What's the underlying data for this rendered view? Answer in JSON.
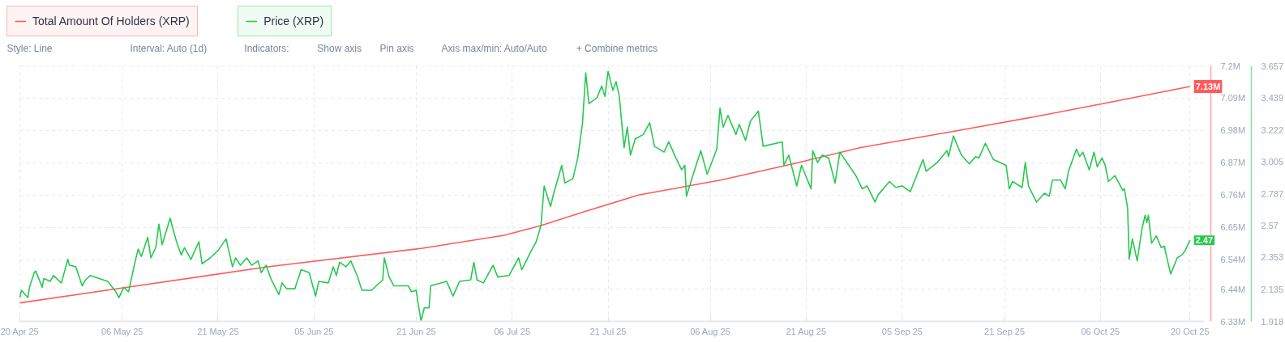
{
  "chart_data": {
    "type": "line",
    "series": [
      {
        "name": "Total Amount Of Holders (XRP)",
        "color": "#ff5a5a",
        "x": [
          "2025-04-20",
          "2025-05-05T12:00",
          "2025-05-28T12:00",
          "2025-06-22",
          "2025-07-04T18:00",
          "2025-07-10T12:00",
          "2025-07-17T12:00",
          "2025-07-25T18:00",
          "2025-08-07T18:00",
          "2025-08-19",
          "2025-08-29T12:00",
          "2025-09-13",
          "2025-09-25T12:00",
          "2025-10-06T12:00",
          "2025-10-20"
        ],
        "values": [
          6.393,
          6.442,
          6.515,
          6.579,
          6.623,
          6.656,
          6.705,
          6.76,
          6.812,
          6.867,
          6.922,
          6.977,
          7.026,
          7.072,
          7.13
        ],
        "value_labels": [
          null,
          null,
          null,
          null,
          null,
          null,
          null,
          null,
          null,
          null,
          null,
          null,
          null,
          null,
          "7.13M"
        ]
      },
      {
        "name": "Price (XRP)",
        "color": "#28c850",
        "axis": "y2",
        "x": [
          "2025-04-20",
          "2025-04-20T06:00",
          "2025-04-21T06:00",
          "2025-04-21T12:00",
          "2025-04-22T06:00",
          "2025-04-22T12:00",
          "2025-04-23T12:00",
          "2025-04-23T18:00",
          "2025-04-24T18:00",
          "2025-04-25T06:00",
          "2025-04-26T12:00",
          "2025-04-27T12:00",
          "2025-04-27T18:00",
          "2025-04-28T18:00",
          "2025-04-29T18:00",
          "2025-04-30T06:00",
          "2025-05-01",
          "2025-05-03T18:00",
          "2025-05-05",
          "2025-05-05T12:00",
          "2025-05-06T06:00",
          "2025-05-07",
          "2025-05-08",
          "2025-05-08T12:00",
          "2025-05-09",
          "2025-05-10",
          "2025-05-10T12:00",
          "2025-05-11T06:00",
          "2025-05-11T18:00",
          "2025-05-12T06:00",
          "2025-05-13T12:00",
          "2025-05-14T12:00",
          "2025-05-15T06:00",
          "2025-05-15T18:00",
          "2025-05-16T18:00",
          "2025-05-18",
          "2025-05-18T12:00",
          "2025-05-19T18:00",
          "2025-05-21",
          "2025-05-22T06:00",
          "2025-05-23T06:00",
          "2025-05-23T18:00",
          "2025-05-24T12:00",
          "2025-05-25T12:00",
          "2025-05-26T06:00",
          "2025-05-27T06:00",
          "2025-05-27T18:00",
          "2025-05-28T12:00",
          "2025-05-29T06:00",
          "2025-05-30T12:00",
          "2025-05-31",
          "2025-05-31T18:00",
          "2025-06-02",
          "2025-06-03",
          "2025-06-04T06:00",
          "2025-06-05T06:00",
          "2025-06-05T18:00",
          "2025-06-07T06:00",
          "2025-06-08",
          "2025-06-08T12:00",
          "2025-06-09",
          "2025-06-10",
          "2025-06-10T18:00",
          "2025-06-11T18:00",
          "2025-06-12T12:00",
          "2025-06-14",
          "2025-06-15T18:00",
          "2025-06-16",
          "2025-06-16T18:00",
          "2025-06-17T12:00",
          "2025-06-19T18:00",
          "2025-06-20T06:00",
          "2025-06-21",
          "2025-06-21T06:00",
          "2025-06-21T18:00",
          "2025-06-22T06:00",
          "2025-06-23",
          "2025-06-23T06:00",
          "2025-06-25T18:00",
          "2025-06-26T18:00",
          "2025-06-27T18:00",
          "2025-06-29T12:00",
          "2025-06-30",
          "2025-06-30T12:00",
          "2025-07-01T12:00",
          "2025-07-03",
          "2025-07-03T18:00",
          "2025-07-05T12:00",
          "2025-07-07",
          "2025-07-07T12:00",
          "2025-07-09",
          "2025-07-09T18:00",
          "2025-07-10T12:00",
          "2025-07-11",
          "2025-07-12",
          "2025-07-12T12:00",
          "2025-07-13T18:00",
          "2025-07-14T06:00",
          "2025-07-15T12:00",
          "2025-07-16T06:00",
          "2025-07-17",
          "2025-07-17T12:00",
          "2025-07-18",
          "2025-07-19T06:00",
          "2025-07-20",
          "2025-07-20T12:00",
          "2025-07-21",
          "2025-07-21T18:00",
          "2025-07-22T06:00",
          "2025-07-22T18:00",
          "2025-07-23T12:00",
          "2025-07-24",
          "2025-07-24T12:00",
          "2025-07-25T06:00",
          "2025-07-26T12:00",
          "2025-07-27T12:00",
          "2025-07-28T06:00",
          "2025-07-29T18:00",
          "2025-07-30T12:00",
          "2025-07-31T12:00",
          "2025-08-01T12:00",
          "2025-08-02",
          "2025-08-02T06:00",
          "2025-08-03T06:00",
          "2025-08-04T12:00",
          "2025-08-05T12:00",
          "2025-08-07",
          "2025-08-07T12:00",
          "2025-08-08",
          "2025-08-08T18:00",
          "2025-08-10",
          "2025-08-10T12:00",
          "2025-08-11T12:00",
          "2025-08-12T06:00",
          "2025-08-13T12:00",
          "2025-08-14T06:00",
          "2025-08-17T06:00",
          "2025-08-17T12:00",
          "2025-08-18T06:00",
          "2025-08-19T12:00",
          "2025-08-20T06:00",
          "2025-08-21T18:00",
          "2025-08-22",
          "2025-08-22T18:00",
          "2025-08-23T12:00",
          "2025-08-24T12:00",
          "2025-08-25T12:00",
          "2025-08-26T06:00",
          "2025-08-27T12:00",
          "2025-08-28T18:00",
          "2025-08-29T18:00",
          "2025-08-30T12:00",
          "2025-08-31T18:00",
          "2025-09-01T06:00",
          "2025-09-03",
          "2025-09-04",
          "2025-09-05",
          "2025-09-06T06:00",
          "2025-09-07T06:00",
          "2025-09-08T06:00",
          "2025-09-08T18:00",
          "2025-09-10T12:00",
          "2025-09-12",
          "2025-09-12T06:00",
          "2025-09-13",
          "2025-09-14T06:00",
          "2025-09-15T12:00",
          "2025-09-16T12:00",
          "2025-09-17",
          "2025-09-18",
          "2025-09-19T06:00",
          "2025-09-21T06:00",
          "2025-09-21T18:00",
          "2025-09-22T06:00",
          "2025-09-23T18:00",
          "2025-09-24T06:00",
          "2025-09-24T18:00",
          "2025-09-26",
          "2025-09-27T06:00",
          "2025-09-28",
          "2025-09-28T12:00",
          "2025-09-29T18:00",
          "2025-09-30T12:00",
          "2025-10-01",
          "2025-10-02T06:00",
          "2025-10-02T18:00",
          "2025-10-03T06:00",
          "2025-10-04T06:00",
          "2025-10-05",
          "2025-10-05T12:00",
          "2025-10-06T06:00",
          "2025-10-06T18:00",
          "2025-10-07T06:00",
          "2025-10-08T06:00",
          "2025-10-09T12:00",
          "2025-10-09T18:00",
          "2025-10-10T06:00",
          "2025-10-10T12:00",
          "2025-10-11",
          "2025-10-11T18:00",
          "2025-10-12T12:00",
          "2025-10-13",
          "2025-10-13T06:00",
          "2025-10-13T12:00",
          "2025-10-14",
          "2025-10-14T18:00",
          "2025-10-15T12:00",
          "2025-10-16",
          "2025-10-16T12:00",
          "2025-10-17",
          "2025-10-18",
          "2025-10-18T18:00",
          "2025-10-19T06:00",
          "2025-10-20"
        ],
        "values": [
          2.08,
          2.13,
          2.08,
          2.15,
          2.25,
          2.26,
          2.15,
          2.21,
          2.19,
          2.23,
          2.18,
          2.34,
          2.3,
          2.29,
          2.16,
          2.2,
          2.23,
          2.19,
          2.12,
          2.08,
          2.15,
          2.12,
          2.32,
          2.41,
          2.36,
          2.49,
          2.35,
          2.42,
          2.58,
          2.44,
          2.62,
          2.46,
          2.37,
          2.42,
          2.34,
          2.46,
          2.31,
          2.35,
          2.4,
          2.48,
          2.29,
          2.35,
          2.3,
          2.35,
          2.3,
          2.33,
          2.25,
          2.3,
          2.21,
          2.1,
          2.18,
          2.14,
          2.14,
          2.27,
          2.25,
          2.09,
          2.19,
          2.18,
          2.29,
          2.23,
          2.32,
          2.29,
          2.33,
          2.23,
          2.13,
          2.13,
          2.2,
          2.35,
          2.22,
          2.16,
          2.16,
          2.12,
          2.13,
          2.05,
          1.92,
          2.01,
          2.01,
          2.16,
          2.19,
          2.09,
          2.19,
          2.2,
          2.32,
          2.2,
          2.18,
          2.3,
          2.22,
          2.23,
          2.35,
          2.27,
          2.4,
          2.46,
          2.57,
          2.84,
          2.7,
          2.79,
          2.98,
          2.86,
          2.89,
          3.03,
          3.27,
          3.61,
          3.4,
          3.44,
          3.52,
          3.45,
          3.62,
          3.49,
          3.55,
          3.45,
          3.1,
          3.24,
          3.05,
          3.16,
          3.19,
          3.27,
          3.11,
          3.07,
          3.14,
          3.04,
          2.95,
          2.98,
          2.77,
          2.91,
          3.08,
          2.92,
          3.09,
          3.37,
          3.24,
          3.32,
          3.19,
          3.26,
          3.15,
          3.28,
          3.35,
          3.11,
          3.14,
          2.98,
          3.05,
          2.84,
          2.98,
          2.82,
          3.08,
          3.0,
          3.05,
          3.03,
          2.86,
          3.07,
          2.99,
          2.91,
          2.82,
          2.84,
          2.73,
          2.78,
          2.87,
          2.83,
          2.84,
          2.8,
          2.91,
          3.02,
          2.94,
          3.0,
          3.08,
          3.04,
          3.18,
          3.05,
          2.99,
          3.04,
          3.03,
          3.13,
          3.02,
          2.98,
          2.82,
          2.87,
          2.83,
          3.0,
          2.84,
          2.73,
          2.79,
          2.77,
          2.88,
          2.88,
          2.82,
          2.94,
          3.09,
          3.04,
          3.07,
          2.95,
          3.07,
          2.97,
          3.03,
          2.98,
          2.87,
          2.91,
          2.81,
          2.82,
          2.69,
          2.34,
          2.48,
          2.33,
          2.55,
          2.64,
          2.59,
          2.64,
          2.45,
          2.5,
          2.42,
          2.43,
          2.33,
          2.24,
          2.35,
          2.37,
          2.4,
          2.47
        ],
        "value_labels": [
          null,
          null,
          null,
          null,
          null,
          null,
          null,
          null,
          null,
          null,
          null,
          null,
          null,
          null,
          null,
          null,
          null,
          null,
          null,
          null,
          null,
          null,
          null,
          null,
          null,
          null,
          null,
          null,
          null,
          null,
          null,
          null,
          null,
          null,
          null,
          null,
          null,
          null,
          null,
          null,
          null,
          null,
          null,
          null,
          null,
          null,
          null,
          null,
          null,
          null,
          null,
          null,
          null,
          null,
          null,
          null,
          null,
          null,
          null,
          null,
          null,
          null,
          null,
          null,
          null,
          null,
          null,
          null,
          null,
          null,
          null,
          null,
          null,
          null,
          null,
          null,
          null,
          null,
          null,
          null,
          null,
          null,
          null,
          null,
          null,
          null,
          null,
          null,
          null,
          null,
          null,
          null,
          null,
          null,
          null,
          null,
          null,
          null,
          null,
          null,
          null,
          null,
          null,
          null,
          null,
          null,
          null,
          null,
          null,
          null,
          null,
          null,
          null,
          null,
          null,
          null,
          null,
          null,
          null,
          null,
          null,
          null,
          null,
          null,
          null,
          null,
          null,
          null,
          null,
          null,
          null,
          null,
          null,
          null,
          null,
          null,
          null,
          null,
          null,
          null,
          null,
          null,
          null,
          null,
          null,
          null,
          null,
          null,
          null,
          null,
          null,
          null,
          null,
          null,
          null,
          null,
          null,
          null,
          null,
          null,
          null,
          null,
          null,
          null,
          null,
          null,
          null,
          null,
          null,
          null,
          null,
          null,
          null,
          null,
          null,
          null,
          null,
          null,
          null,
          null,
          null,
          null,
          null,
          null,
          null,
          null,
          null,
          null,
          null,
          null,
          null,
          null,
          null,
          null,
          null,
          null,
          null,
          null,
          null,
          null,
          null,
          null,
          null,
          null,
          null,
          null,
          null,
          null,
          null,
          null,
          null,
          null,
          null,
          "2.47"
        ]
      }
    ],
    "xlim": [
      "2025-04-20",
      "2025-10-22T06:00"
    ],
    "xticks": [
      {
        "value": "2025-04-20",
        "label": "20 Apr 25"
      },
      {
        "value": "2025-05-06",
        "label": "06 May 25"
      },
      {
        "value": "2025-05-21",
        "label": "21 May 25"
      },
      {
        "value": "2025-06-05",
        "label": "05 Jun 25"
      },
      {
        "value": "2025-06-21",
        "label": "21 Jun 25"
      },
      {
        "value": "2025-07-06",
        "label": "06 Jul 25"
      },
      {
        "value": "2025-07-21",
        "label": "21 Jul 25"
      },
      {
        "value": "2025-08-06",
        "label": "06 Aug 25"
      },
      {
        "value": "2025-08-21",
        "label": "21 Aug 25"
      },
      {
        "value": "2025-09-05",
        "label": "05 Sep 25"
      },
      {
        "value": "2025-09-21",
        "label": "21 Sep 25"
      },
      {
        "value": "2025-10-06",
        "label": "06 Oct 25"
      },
      {
        "value": "2025-10-20",
        "label": "20 Oct 25"
      }
    ],
    "ylim": [
      6.33,
      7.2
    ],
    "yticks": [
      {
        "value": 6.33,
        "label": "6.33M"
      },
      {
        "value": 6.44,
        "label": "6.44M"
      },
      {
        "value": 6.54,
        "label": "6.54M"
      },
      {
        "value": 6.65,
        "label": "6.65M"
      },
      {
        "value": 6.76,
        "label": "6.76M"
      },
      {
        "value": 6.87,
        "label": "6.87M"
      },
      {
        "value": 6.98,
        "label": "6.98M"
      },
      {
        "value": 7.09,
        "label": "7.09M"
      },
      {
        "value": 7.2,
        "label": "7.2M"
      }
    ],
    "y2lim": [
      1.918,
      3.657
    ],
    "y2ticks": [
      1.918,
      2.135,
      2.353,
      2.57,
      2.787,
      3.005,
      3.222,
      3.439,
      3.657
    ],
    "grid": true,
    "legend": "top left",
    "annotations": [
      "Style: Line",
      "Interval: Auto (1d)",
      "Indicators:",
      "Show axis",
      "Pin axis",
      "Axis max/min: Auto/Auto",
      "+ Combine metrics"
    ]
  }
}
